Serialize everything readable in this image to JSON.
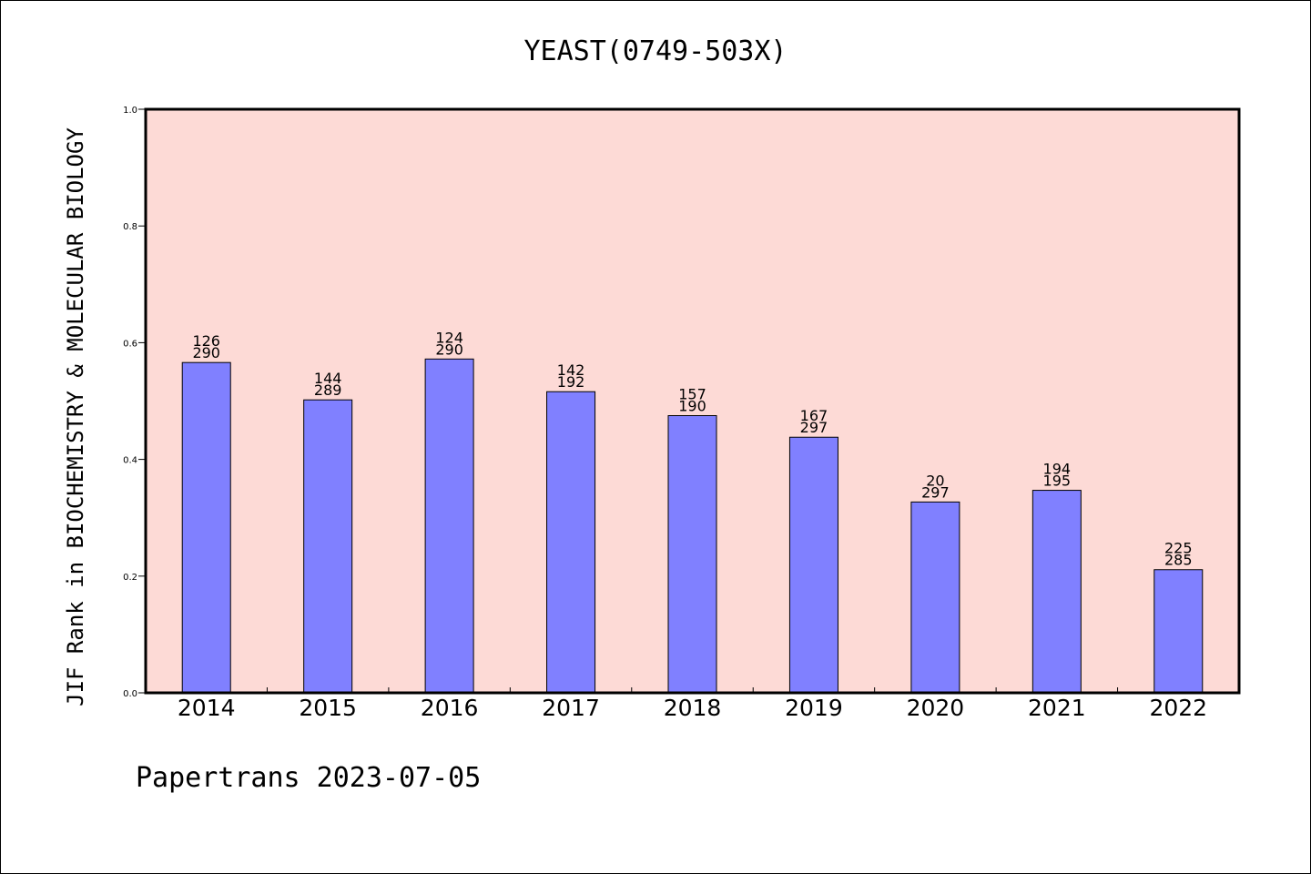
{
  "colors": {
    "plot_background": "#fddad6",
    "bar_fill": "#8080ff",
    "bar_stroke": "#000000",
    "axis": "#000000"
  },
  "footer": {
    "text": "Papertrans 2023-07-05"
  },
  "chart_data": {
    "type": "bar",
    "title": "YEAST(0749-503X)",
    "xlabel": "",
    "ylabel": "JIF Rank in BIOCHEMISTRY & MOLECULAR BIOLOGY",
    "ylim": [
      0,
      1.0
    ],
    "yticks": [
      0.0,
      0.2,
      0.4,
      0.6,
      0.8,
      1.0
    ],
    "ytick_labels": [
      "0.0",
      "0.2",
      "0.4",
      "0.6",
      "0.8",
      "1.0"
    ],
    "grid": false,
    "categories": [
      "2014",
      "2015",
      "2016",
      "2017",
      "2018",
      "2019",
      "2020",
      "2021",
      "2022"
    ],
    "values": [
      0.566,
      0.502,
      0.572,
      0.516,
      0.475,
      0.438,
      0.327,
      0.347,
      0.211
    ],
    "rank": [
      126,
      144,
      124,
      142,
      157,
      167,
      20,
      194,
      225
    ],
    "total": [
      290,
      289,
      290,
      192,
      190,
      297,
      297,
      195,
      285
    ],
    "data_labels": [
      [
        "126",
        "290"
      ],
      [
        "144",
        "289"
      ],
      [
        "124",
        "290"
      ],
      [
        "142",
        "192"
      ],
      [
        "157",
        "190"
      ],
      [
        "167",
        "297"
      ],
      [
        "20",
        "297"
      ],
      [
        "194",
        "195"
      ],
      [
        "225",
        "285"
      ]
    ]
  }
}
